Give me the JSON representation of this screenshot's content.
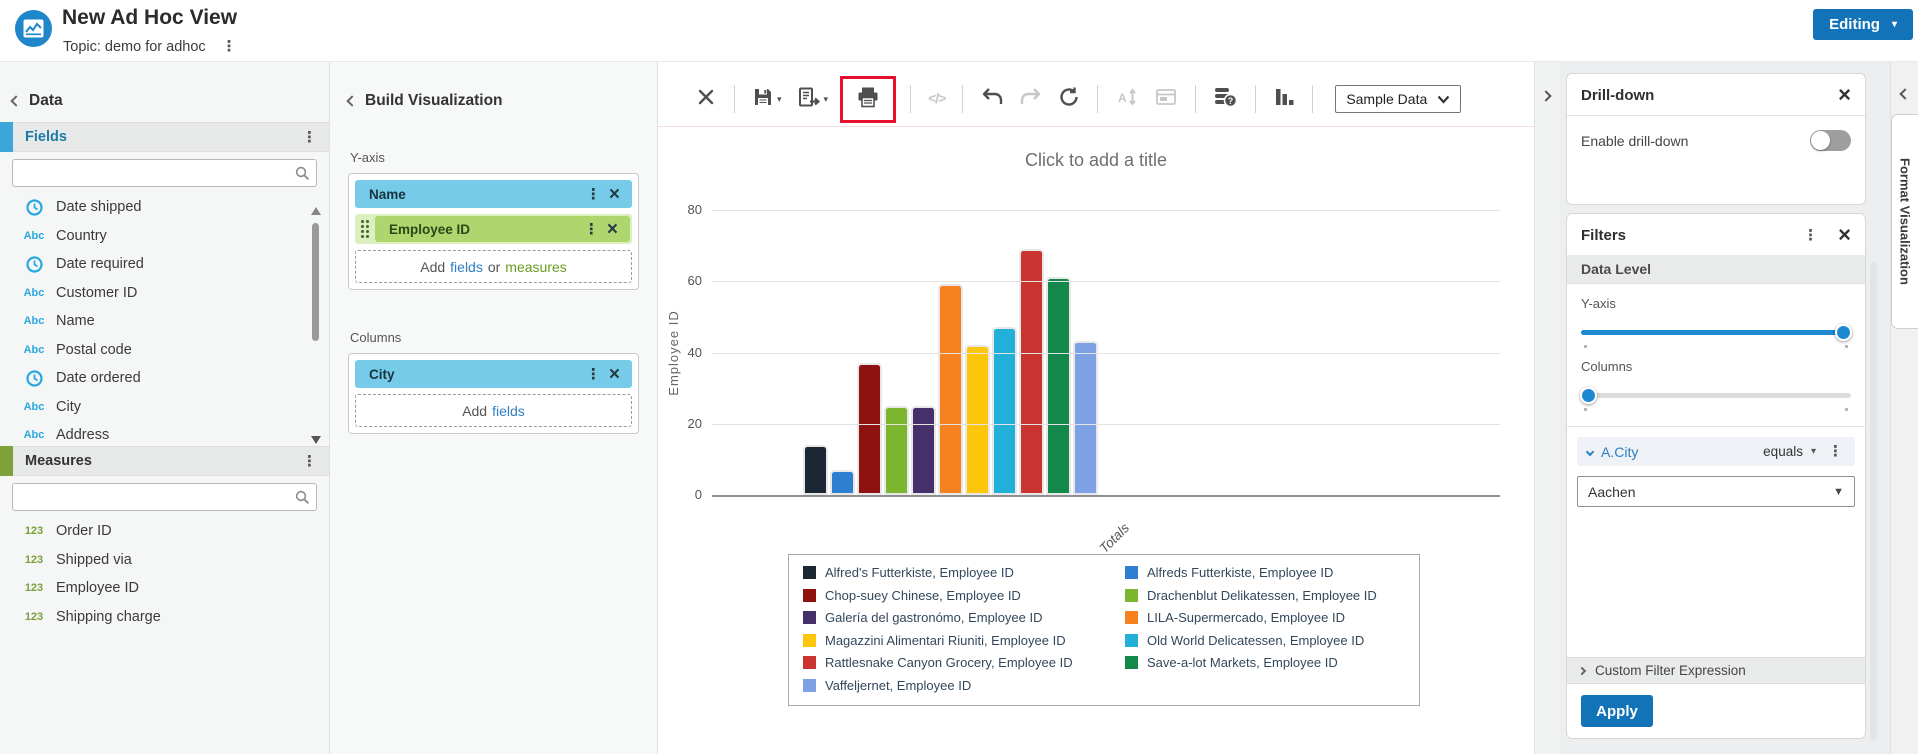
{
  "header": {
    "title": "New Ad Hoc View",
    "topic_label": "Topic: demo for adhoc",
    "editing_label": "Editing"
  },
  "data_panel": {
    "title": "Data",
    "fields_section": {
      "label": "Fields",
      "search_placeholder": "",
      "items": [
        {
          "icon": "clock-icon",
          "label": "Date shipped"
        },
        {
          "icon": "text-icon",
          "label": "Country"
        },
        {
          "icon": "clock-icon",
          "label": "Date required"
        },
        {
          "icon": "text-icon",
          "label": "Customer ID"
        },
        {
          "icon": "text-icon",
          "label": "Name"
        },
        {
          "icon": "text-icon",
          "label": "Postal code"
        },
        {
          "icon": "clock-icon",
          "label": "Date ordered"
        },
        {
          "icon": "text-icon",
          "label": "City"
        },
        {
          "icon": "text-icon",
          "label": "Address"
        }
      ]
    },
    "measures_section": {
      "label": "Measures",
      "search_placeholder": "",
      "items": [
        {
          "icon": "numeric-icon",
          "label": "Order ID"
        },
        {
          "icon": "numeric-icon",
          "label": "Shipped via"
        },
        {
          "icon": "numeric-icon",
          "label": "Employee ID"
        },
        {
          "icon": "numeric-icon",
          "label": "Shipping charge"
        }
      ]
    }
  },
  "build_panel": {
    "title": "Build Visualization",
    "y_axis": {
      "label": "Y-axis",
      "chips": [
        {
          "label": "Name"
        },
        {
          "label": "Employee ID"
        }
      ],
      "add_parts": [
        "Add",
        "fields",
        "or",
        "measures"
      ]
    },
    "columns": {
      "label": "Columns",
      "chips": [
        {
          "label": "City"
        }
      ],
      "add_parts": [
        "Add",
        "fields"
      ]
    }
  },
  "toolbar": {
    "items": [
      {
        "icon": "cancel-icon"
      },
      {
        "divider": true
      },
      {
        "icon": "save-icon",
        "dropdown": true
      },
      {
        "icon": "export-icon",
        "dropdown": true
      },
      {
        "icon": "print-icon",
        "highlighted": true
      },
      {
        "divider": true
      },
      {
        "icon": "code-icon",
        "disabled": true
      },
      {
        "divider": true
      },
      {
        "icon": "undo-icon"
      },
      {
        "icon": "redo-icon",
        "disabled": true
      },
      {
        "icon": "reset-icon"
      },
      {
        "divider": true
      },
      {
        "icon": "sort-icon",
        "disabled": true
      },
      {
        "icon": "canvas-options-icon",
        "disabled": true
      },
      {
        "divider": true
      },
      {
        "icon": "data-source-icon"
      },
      {
        "divider": true
      },
      {
        "icon": "chart-type-icon"
      },
      {
        "divider": true
      }
    ],
    "dataset_label": "Sample Data",
    "highlight_color": "#e8112d"
  },
  "chart_data": {
    "type": "bar",
    "title": "Click to add a title",
    "ylabel": "Employee ID",
    "xlabel": "Totals",
    "ylim": [
      0,
      80
    ],
    "yticks": [
      0,
      20,
      40,
      60,
      80
    ],
    "categories": [
      "Totals"
    ],
    "grid": true,
    "legend_position": "bottom",
    "series": [
      {
        "name": "Alfred's Futterkiste, Employee ID",
        "color": "#1b2733",
        "values": [
          13
        ]
      },
      {
        "name": "Alfreds Futterkiste, Employee ID",
        "color": "#2e7fd2",
        "values": [
          6
        ]
      },
      {
        "name": "Chop-suey Chinese, Employee ID",
        "color": "#8e1210",
        "values": [
          36
        ]
      },
      {
        "name": "Drachenblut Delikatessen, Employee ID",
        "color": "#7cb52e",
        "values": [
          24
        ]
      },
      {
        "name": "Galería del gastronómo, Employee ID",
        "color": "#45306b",
        "values": [
          24
        ]
      },
      {
        "name": "LILA-Supermercado, Employee ID",
        "color": "#f6821f",
        "values": [
          58
        ]
      },
      {
        "name": "Magazzini Alimentari Riuniti, Employee ID",
        "color": "#fcc60a",
        "values": [
          41
        ]
      },
      {
        "name": "Old World Delicatessen, Employee ID",
        "color": "#22b0d9",
        "values": [
          46
        ]
      },
      {
        "name": "Rattlesnake Canyon Grocery, Employee ID",
        "color": "#c93330",
        "values": [
          68
        ]
      },
      {
        "name": "Save-a-lot Markets, Employee ID",
        "color": "#12894a",
        "values": [
          60
        ]
      },
      {
        "name": "Vaffeljernet, Employee ID",
        "color": "#7ea0e4",
        "values": [
          42
        ]
      }
    ]
  },
  "drilldown_panel": {
    "title": "Drill-down",
    "enable_label": "Enable drill-down",
    "enabled": false
  },
  "filters_panel": {
    "title": "Filters",
    "data_level_label": "Data Level",
    "sliders": [
      {
        "label": "Y-axis",
        "value": 1
      },
      {
        "label": "Columns",
        "value": 0
      }
    ],
    "condition": {
      "field": "A.City",
      "operator": "equals",
      "value": "Aachen"
    },
    "custom_expression_label": "Custom Filter Expression",
    "apply_label": "Apply"
  },
  "format_panel_tab": {
    "label": "Format Visualization"
  },
  "colors": {
    "accent_blue": "#1273b8",
    "link_blue": "#2d7fc1",
    "field_blue": "#29a8df",
    "measure_green": "#7ba03b",
    "chip_blue": "#76cbe9",
    "chip_green": "#aed66e",
    "highlight_red": "#e8112d"
  }
}
